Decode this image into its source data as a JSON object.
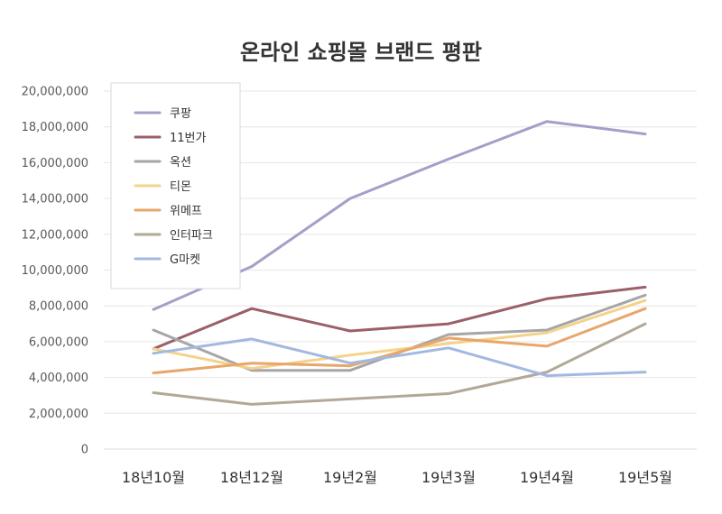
{
  "chart_data": {
    "type": "line",
    "title": "온라인 쇼핑몰 브랜드 평판",
    "categories": [
      "18년10월",
      "18년12월",
      "19년2월",
      "19년3월",
      "19년4월",
      "19년5월"
    ],
    "ylim": [
      0,
      20000000
    ],
    "yticks": [
      0,
      2000000,
      4000000,
      6000000,
      8000000,
      10000000,
      12000000,
      14000000,
      16000000,
      18000000,
      20000000
    ],
    "ytick_labels": [
      "0",
      "2,000,000",
      "4,000,000",
      "6,000,000",
      "8,000,000",
      "10,000,000",
      "12,000,000",
      "14,000,000",
      "16,000,000",
      "18,000,000",
      "20,000,000"
    ],
    "grid": true,
    "legend_position": "top-left",
    "series": [
      {
        "name": "쿠팡",
        "color": "#A89DC8",
        "values": [
          7800000,
          10200000,
          14000000,
          16200000,
          18300000,
          17600000
        ]
      },
      {
        "name": "11번가",
        "color": "#9B5F68",
        "values": [
          5600000,
          7850000,
          6600000,
          7000000,
          8400000,
          9050000
        ]
      },
      {
        "name": "옥션",
        "color": "#A6A6A6",
        "values": [
          6650000,
          4400000,
          4400000,
          6400000,
          6650000,
          8600000
        ]
      },
      {
        "name": "티몬",
        "color": "#F3D28A",
        "values": [
          5600000,
          4500000,
          5250000,
          5900000,
          6500000,
          8300000
        ]
      },
      {
        "name": "위메프",
        "color": "#E8A66A",
        "values": [
          4250000,
          4800000,
          4650000,
          6200000,
          5750000,
          7850000
        ]
      },
      {
        "name": "인터파크",
        "color": "#B2A898",
        "values": [
          3150000,
          2500000,
          2800000,
          3100000,
          4300000,
          7000000
        ]
      },
      {
        "name": "G마켓",
        "color": "#A3B8E0",
        "values": [
          5350000,
          6150000,
          4800000,
          5650000,
          4100000,
          4300000
        ]
      }
    ]
  }
}
